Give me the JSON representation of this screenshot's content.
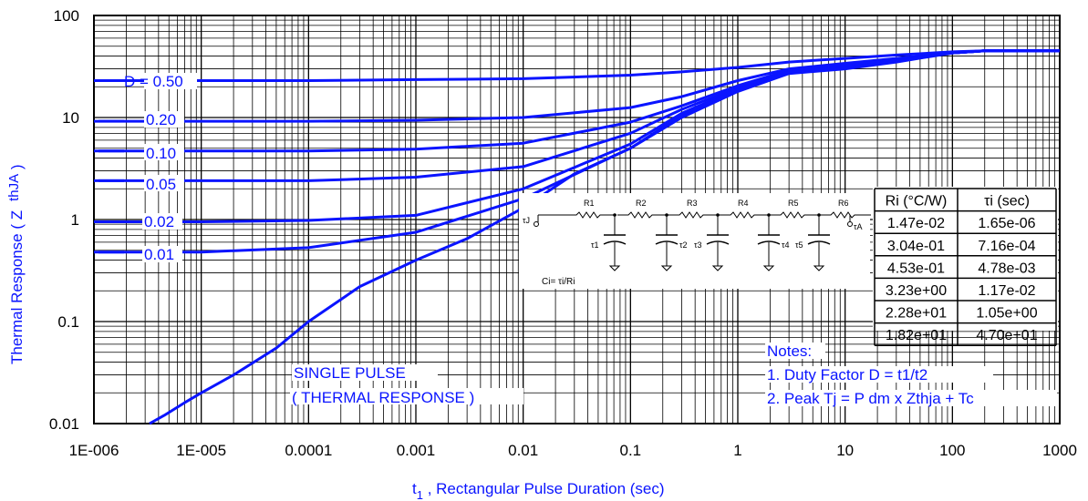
{
  "chart_data": {
    "type": "line",
    "xscale": "log",
    "yscale": "log",
    "xlim": [
      1e-06,
      1000
    ],
    "ylim": [
      0.01,
      100
    ],
    "grid": true,
    "xlabel_main": "t",
    "xlabel_sub": "1",
    "xlabel_rest": " , Rectangular Pulse Duration (sec)",
    "ylabel_main": "Thermal Response ( Z",
    "ylabel_sub": "thJA",
    "ylabel_end": " )",
    "x_ticks": [
      {
        "value": 1e-06,
        "label": "1E-006"
      },
      {
        "value": 1e-05,
        "label": "1E-005"
      },
      {
        "value": 0.0001,
        "label": "0.0001"
      },
      {
        "value": 0.001,
        "label": "0.001"
      },
      {
        "value": 0.01,
        "label": "0.01"
      },
      {
        "value": 0.1,
        "label": "0.1"
      },
      {
        "value": 1,
        "label": "1"
      },
      {
        "value": 10,
        "label": "10"
      },
      {
        "value": 100,
        "label": "100"
      },
      {
        "value": 1000,
        "label": "1000"
      }
    ],
    "y_ticks": [
      {
        "value": 0.01,
        "label": "0.01"
      },
      {
        "value": 0.1,
        "label": "0.1"
      },
      {
        "value": 1,
        "label": "1"
      },
      {
        "value": 10,
        "label": "10"
      },
      {
        "value": 100,
        "label": "100"
      }
    ],
    "series": [
      {
        "name": "D = 0.50",
        "x": [
          1e-06,
          1e-05,
          0.0001,
          0.001,
          0.01,
          0.1,
          0.3,
          1,
          3,
          10,
          30,
          100,
          200,
          1000
        ],
        "y": [
          23,
          23,
          23,
          23.5,
          24,
          26,
          28,
          31,
          35,
          38,
          41,
          44,
          45,
          45
        ]
      },
      {
        "name": "0.20",
        "x": [
          1e-06,
          1e-05,
          0.0001,
          0.001,
          0.01,
          0.1,
          0.3,
          1,
          3,
          10,
          30,
          100,
          200,
          1000
        ],
        "y": [
          9.2,
          9.2,
          9.2,
          9.4,
          10,
          12.5,
          16,
          23,
          30,
          34,
          38,
          43,
          45,
          45
        ]
      },
      {
        "name": "0.10",
        "x": [
          1e-06,
          1e-05,
          0.0001,
          0.001,
          0.01,
          0.1,
          0.3,
          1,
          3,
          10,
          30,
          100,
          200,
          1000
        ],
        "y": [
          4.7,
          4.7,
          4.7,
          4.9,
          5.6,
          9,
          13,
          20.5,
          29,
          33,
          37,
          43,
          45,
          45
        ]
      },
      {
        "name": "0.05",
        "x": [
          1e-06,
          1e-05,
          0.0001,
          0.001,
          0.01,
          0.1,
          0.3,
          1,
          3,
          10,
          30,
          100,
          200,
          1000
        ],
        "y": [
          2.4,
          2.4,
          2.4,
          2.6,
          3.3,
          7,
          12,
          19.5,
          28.5,
          32,
          37,
          43,
          45,
          45
        ]
      },
      {
        "name": "0.02",
        "x": [
          1e-06,
          1e-05,
          0.0001,
          0.001,
          0.01,
          0.1,
          0.3,
          1,
          3,
          10,
          30,
          100,
          200,
          1000
        ],
        "y": [
          0.95,
          0.95,
          0.98,
          1.1,
          2,
          5.5,
          11,
          19,
          28,
          31,
          36,
          43,
          45,
          45
        ]
      },
      {
        "name": "0.01",
        "x": [
          1e-06,
          1e-05,
          0.0001,
          0.001,
          0.01,
          0.1,
          0.3,
          1,
          3,
          10,
          30,
          100,
          200,
          1000
        ],
        "y": [
          0.48,
          0.48,
          0.53,
          0.75,
          1.6,
          5,
          10.5,
          18.5,
          27.5,
          30.5,
          35.5,
          43,
          45,
          45
        ]
      },
      {
        "name": "SINGLE PULSE",
        "x": [
          3.3e-06,
          4.5e-06,
          7e-06,
          1e-05,
          2e-05,
          5e-05,
          0.0001,
          0.0003,
          0.001,
          0.003,
          0.01,
          0.03,
          0.1,
          0.3,
          1,
          3,
          10,
          30,
          100,
          200,
          1000
        ],
        "y": [
          0.01,
          0.012,
          0.016,
          0.02,
          0.03,
          0.055,
          0.1,
          0.22,
          0.4,
          0.65,
          1.3,
          2.8,
          5,
          10,
          18,
          27,
          30,
          35,
          43,
          45,
          45
        ]
      }
    ],
    "labels": {
      "d050": "D = 0.50",
      "d020": "0.20",
      "d010": "0.10",
      "d005": "0.05",
      "d002": "0.02",
      "d001": "0.01",
      "single1": "SINGLE PULSE",
      "single2": "( THERMAL RESPONSE )"
    },
    "notes": {
      "title": "Notes:",
      "n1": "1. Duty Factor D = t1/t2",
      "n2": "2. Peak Tj = P dm x Zthja + Tc"
    },
    "table": {
      "headers": [
        "Ri (°C/W)",
        "τi (sec)"
      ],
      "rows": [
        [
          "1.47e-02",
          "1.65e-06"
        ],
        [
          "3.04e-01",
          "7.16e-04"
        ],
        [
          "4.53e-01",
          "4.78e-03"
        ],
        [
          "3.23e+00",
          "1.17e-02"
        ],
        [
          "2.28e+01",
          "1.05e+00"
        ],
        [
          "1.82e+01",
          "4.70e+01"
        ]
      ]
    },
    "circuit": {
      "resistors": [
        "R1",
        "R2",
        "R3",
        "R4",
        "R5",
        "R6"
      ],
      "taus": [
        "τ1",
        "τ2",
        "τ3",
        "τ4",
        "τ5"
      ],
      "tj": "τJ",
      "ta": "τA",
      "formula": "Ci= τi/Ri"
    },
    "colors": {
      "series": "#0a14ff",
      "grid": "#000000",
      "text": "#0a14ff"
    }
  }
}
